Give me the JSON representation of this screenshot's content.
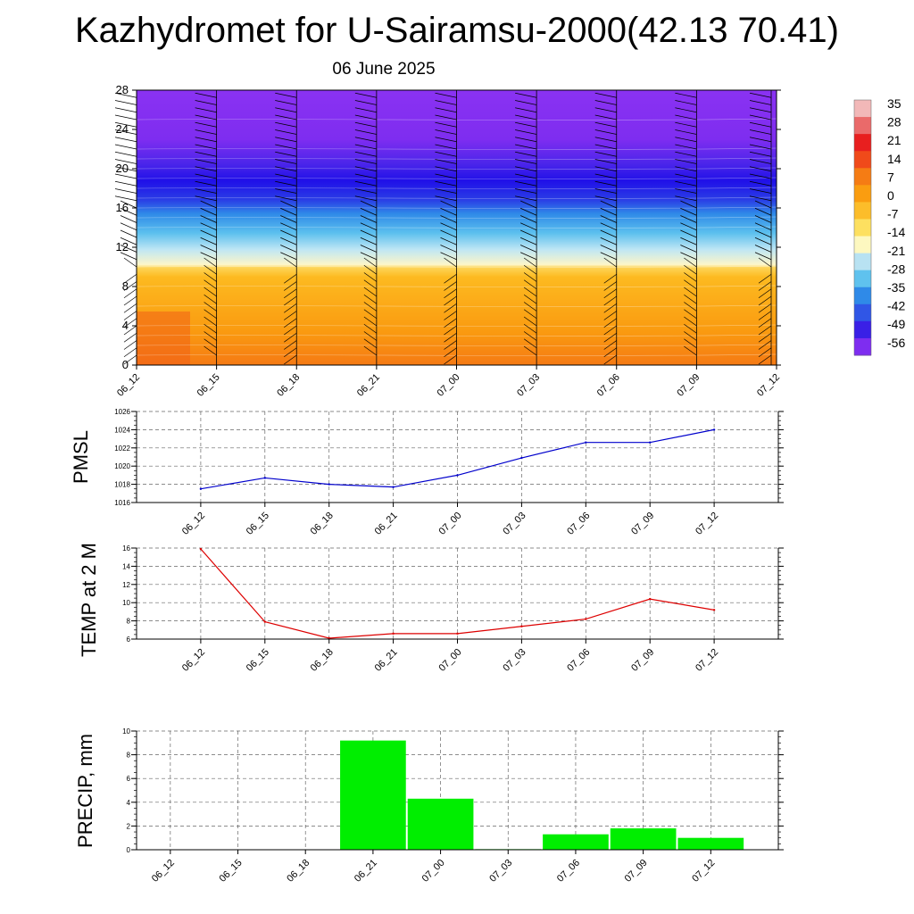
{
  "header": {
    "title": "Kazhydromet for U-Sairamsu-2000(42.13 70.41)",
    "subtitle": "06 June 2025"
  },
  "chart_data": [
    {
      "type": "heatmap",
      "name": "cross-section",
      "x": [
        "06_12",
        "06_15",
        "06_18",
        "06_21",
        "07_00",
        "07_03",
        "07_06",
        "07_09",
        "07_12"
      ],
      "y_ticks": [
        0,
        4,
        8,
        12,
        16,
        20,
        24,
        28
      ],
      "ylim": [
        0,
        28
      ],
      "colorbar_labels": [
        "35",
        "28",
        "21",
        "14",
        "7",
        "0",
        "-7",
        "-14",
        "-21",
        "-28",
        "-35",
        "-42",
        "-49",
        "-56"
      ],
      "colorbar_colors": [
        "#f2b8b8",
        "#ea6a6a",
        "#e81f1f",
        "#f04a1a",
        "#f57c14",
        "#fa9d10",
        "#fcbd2a",
        "#fde060",
        "#fdf8c0",
        "#b8e2f2",
        "#5fc2ee",
        "#2f8ae8",
        "#3056e6",
        "#3a20e6",
        "#7e2df0"
      ],
      "note_profile": "approximate temperature-with-height field with wind barbs"
    },
    {
      "type": "line",
      "name": "pmsl",
      "ylabel": "PMSL",
      "x": [
        "06_12",
        "06_15",
        "06_18",
        "06_21",
        "07_00",
        "07_03",
        "07_06",
        "07_09",
        "07_12"
      ],
      "y": [
        1017.5,
        1018.7,
        1018.0,
        1017.7,
        1019.0,
        1020.9,
        1022.6,
        1022.6,
        1024.0
      ],
      "ylim": [
        1016,
        1026
      ],
      "y_ticks": [
        1016,
        1018,
        1020,
        1022,
        1024,
        1026
      ],
      "color": "#0000cc"
    },
    {
      "type": "line",
      "name": "temp2m",
      "ylabel": "TEMP at 2 M",
      "x": [
        "06_12",
        "06_15",
        "06_18",
        "06_21",
        "07_00",
        "07_03",
        "07_06",
        "07_09",
        "07_12"
      ],
      "y": [
        15.9,
        7.9,
        6.1,
        6.6,
        6.6,
        7.4,
        8.2,
        10.4,
        9.2
      ],
      "ylim": [
        6,
        16
      ],
      "y_ticks": [
        6,
        8,
        10,
        12,
        14,
        16
      ],
      "color": "#dd0000"
    },
    {
      "type": "bar",
      "name": "precip",
      "ylabel": "PRECIP, mm",
      "categories": [
        "06_12",
        "06_15",
        "06_18",
        "06_21",
        "07_00",
        "07_03",
        "07_06",
        "07_09",
        "07_12"
      ],
      "values": [
        0,
        0,
        0,
        9.2,
        4.3,
        0.05,
        1.3,
        1.8,
        1.0
      ],
      "ylim": [
        0,
        10
      ],
      "y_ticks": [
        0,
        2,
        4,
        6,
        8,
        10
      ],
      "color": "#00ee00"
    }
  ]
}
